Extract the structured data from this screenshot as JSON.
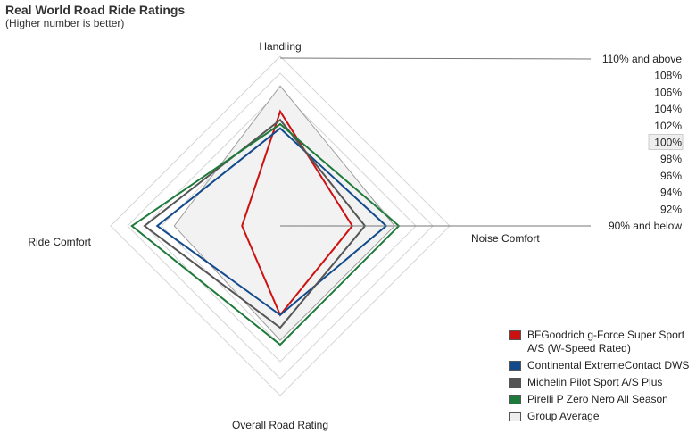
{
  "title": "Real World Road Ride Ratings",
  "subtitle": "(Higher number is better)",
  "chart_data": {
    "type": "radar",
    "axes": [
      "Handling",
      "Noise Comfort",
      "Overall Road Rating",
      "Ride Comfort"
    ],
    "scale_labels": [
      "110% and above",
      "108%",
      "106%",
      "104%",
      "102%",
      "100%",
      "98%",
      "96%",
      "94%",
      "92%",
      "90% and below"
    ],
    "rlim": [
      90,
      110
    ],
    "highlighted_scale_label": "100%",
    "series": [
      {
        "name": "Group Average",
        "color": "#f2f2f2",
        "stroke": "#999999",
        "fill": true,
        "values": [
          106.5,
          103.5,
          103.5,
          102.5
        ]
      },
      {
        "name": "BFGoodrich g-Force Super Sport A/S (W-Speed Rated)",
        "color": "#cc1111",
        "values": [
          103.5,
          98.5,
          100.5,
          94.5
        ]
      },
      {
        "name": "Continental ExtremeContact DWS",
        "color": "#124a8c",
        "values": [
          101.5,
          102.5,
          100.5,
          104.5
        ]
      },
      {
        "name": "Michelin Pilot Sport A/S Plus",
        "color": "#555555",
        "values": [
          102.5,
          100.0,
          102.0,
          106.0
        ]
      },
      {
        "name": "Pirelli P Zero Nero All Season",
        "color": "#1e7a3a",
        "values": [
          102.0,
          104.0,
          104.0,
          107.5
        ]
      }
    ]
  },
  "legend": [
    {
      "label": "BFGoodrich g-Force Super Sport A/S (W-Speed Rated)",
      "color": "#cc1111"
    },
    {
      "label": "Continental ExtremeContact DWS",
      "color": "#124a8c"
    },
    {
      "label": "Michelin Pilot Sport A/S Plus",
      "color": "#555555"
    },
    {
      "label": "Pirelli P Zero Nero All Season",
      "color": "#1e7a3a"
    },
    {
      "label": "Group Average",
      "color": "#eeeeee"
    }
  ]
}
